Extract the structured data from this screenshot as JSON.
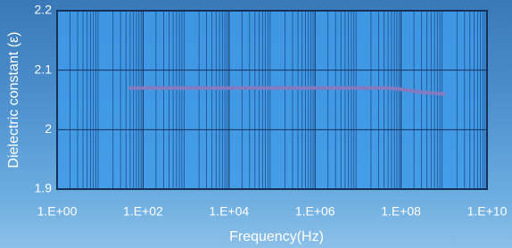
{
  "chart_data": {
    "type": "line",
    "x_label": "Frequency(Hz)",
    "y_label": "Dielectric constant  (ε)",
    "xscale": "log",
    "grid": true,
    "xlim": [
      1,
      10000000000
    ],
    "ylim": [
      1.9,
      2.2
    ],
    "xticks": [
      {
        "value": 1,
        "label": "1.E+00"
      },
      {
        "value": 100,
        "label": "1.E+02"
      },
      {
        "value": 10000,
        "label": "1.E+04"
      },
      {
        "value": 1000000,
        "label": "1.E+06"
      },
      {
        "value": 100000000,
        "label": "1.E+08"
      },
      {
        "value": 10000000000,
        "label": "1.E+10"
      }
    ],
    "yticks": [
      1.9,
      2,
      2.1,
      2.2
    ],
    "x": [
      50,
      1000,
      100000,
      10000000,
      50000000,
      100000000,
      300000000,
      1000000000
    ],
    "series": [
      {
        "color": "#8579c0",
        "values": [
          2.07,
          2.07,
          2.07,
          2.07,
          2.07,
          2.068,
          2.063,
          2.06
        ]
      }
    ]
  }
}
